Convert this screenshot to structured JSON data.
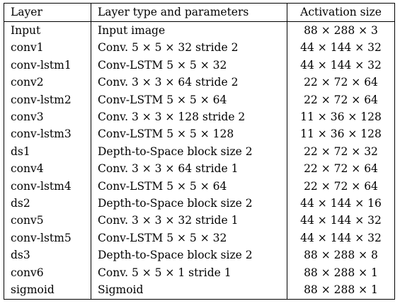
{
  "table": {
    "headers": [
      "Layer",
      "Layer type and parameters",
      "Activation size"
    ],
    "rows": [
      [
        "Input",
        "Input image",
        "88 × 288 × 3"
      ],
      [
        "conv1",
        "Conv. 5 × 5 × 32 stride 2",
        "44 × 144 × 32"
      ],
      [
        "conv-lstm1",
        "Conv-LSTM 5 × 5 × 32",
        "44 × 144 × 32"
      ],
      [
        "conv2",
        "Conv. 3 × 3 × 64 stride 2",
        "22 × 72 × 64"
      ],
      [
        "conv-lstm2",
        "Conv-LSTM 5 × 5 × 64",
        "22 × 72 × 64"
      ],
      [
        "conv3",
        "Conv. 3 × 3 × 128 stride 2",
        "11 × 36 × 128"
      ],
      [
        "conv-lstm3",
        "Conv-LSTM 5 × 5 × 128",
        "11 × 36 × 128"
      ],
      [
        "ds1",
        "Depth-to-Space block size 2",
        "22 × 72 × 32"
      ],
      [
        "conv4",
        "Conv. 3 × 3 × 64 stride 1",
        "22 × 72 × 64"
      ],
      [
        "conv-lstm4",
        "Conv-LSTM 5 × 5 × 64",
        "22 × 72 × 64"
      ],
      [
        "ds2",
        "Depth-to-Space block size 2",
        "44 × 144 × 16"
      ],
      [
        "conv5",
        "Conv. 3 × 3 × 32 stride 1",
        "44 × 144 × 32"
      ],
      [
        "conv-lstm5",
        "Conv-LSTM 5 × 5 × 32",
        "44 × 144 × 32"
      ],
      [
        "ds3",
        "Depth-to-Space block size 2",
        "88 × 288 × 8"
      ],
      [
        "conv6",
        "Conv. 5 × 5 × 1 stride 1",
        "88 × 288 × 1"
      ],
      [
        "sigmoid",
        "Sigmoid",
        "88 × 288 × 1"
      ]
    ]
  }
}
